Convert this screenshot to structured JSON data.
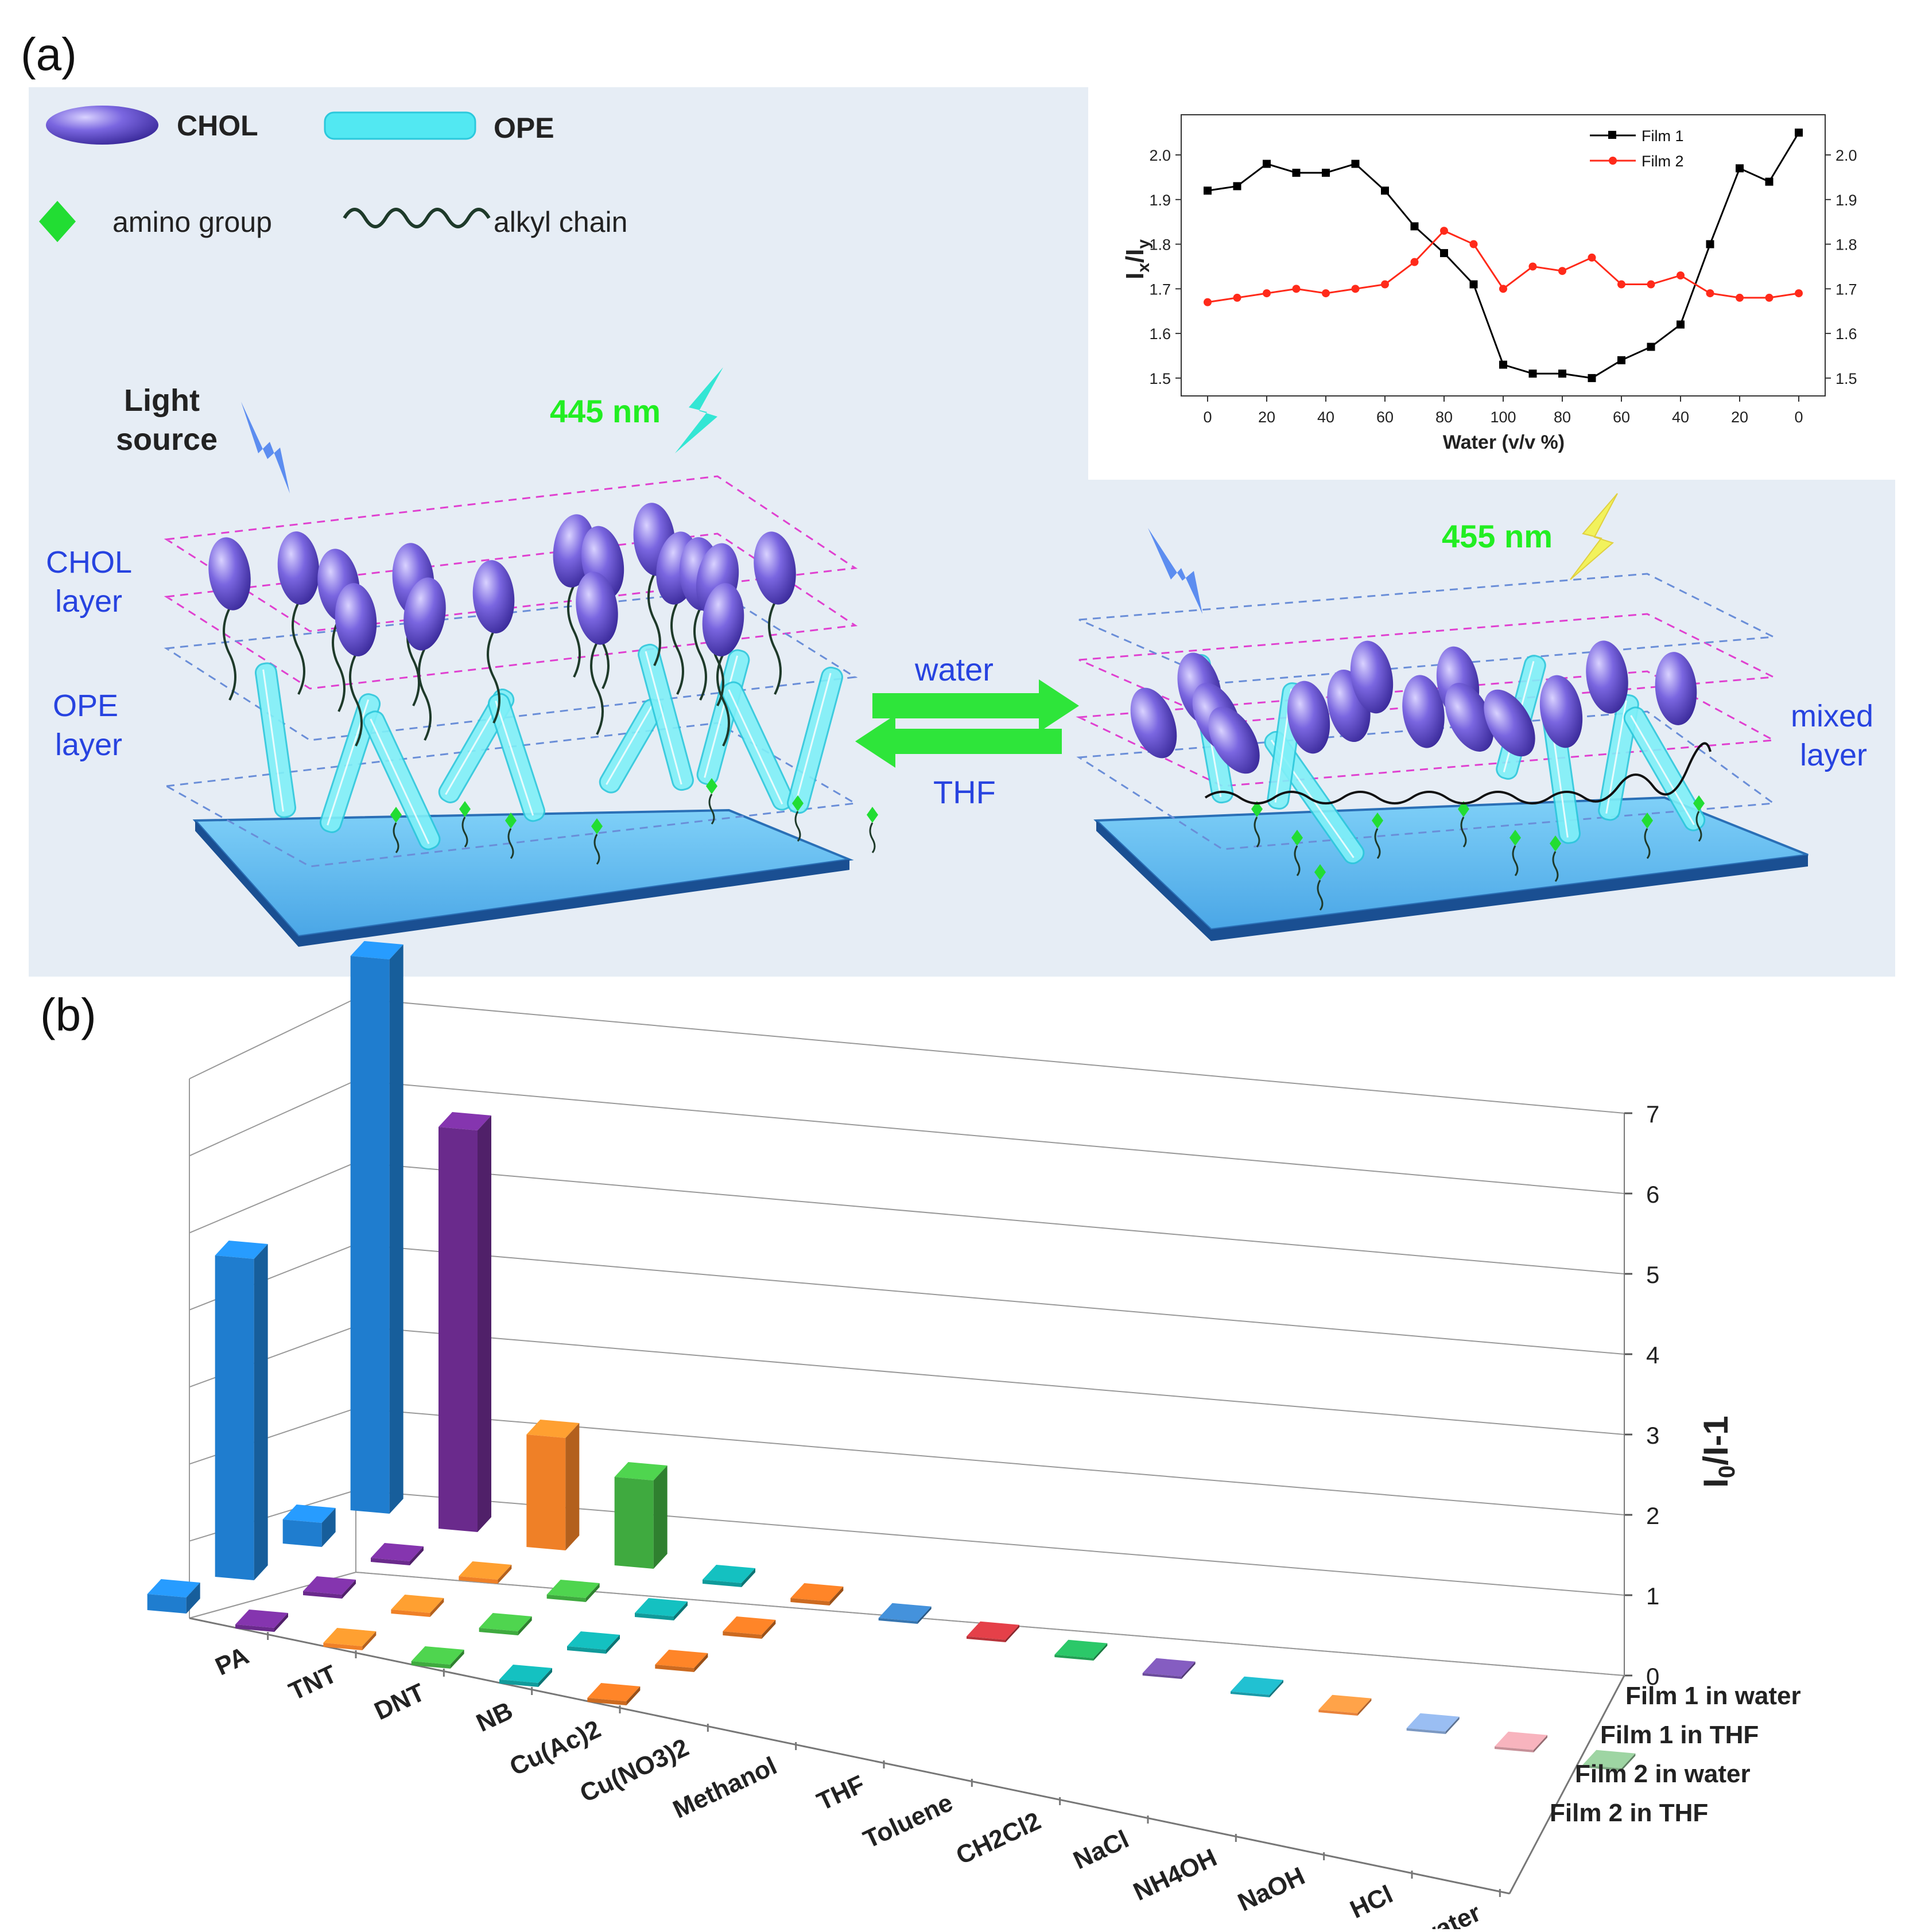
{
  "panel_a": {
    "label": "(a)",
    "legend": {
      "chol": "CHOL",
      "ope": "OPE",
      "amino": "amino group",
      "alkyl": "alkyl chain"
    },
    "light_source": [
      "Light",
      "source"
    ],
    "emission_left": "445 nm",
    "emission_right": "455 nm",
    "layers_left": {
      "chol": [
        "CHOL",
        "layer"
      ],
      "ope": [
        "OPE",
        "layer"
      ]
    },
    "layer_right": [
      "mixed",
      "layer"
    ],
    "arrow_forward": "water",
    "arrow_back": "THF",
    "colors": {
      "background": "#e6edf5",
      "ellipse": "#5a47c8",
      "ope": "#52e8f2",
      "amino": "#22dd33",
      "substrate": "#5cbef2",
      "arrow": "#2ee53a",
      "emit_left": "#33e6d4",
      "emit_right": "#f2f25c",
      "label_blue": "#2743e0"
    }
  },
  "panel_b": {
    "label": "(b)",
    "colors": [
      "#1f7dcf",
      "#6a2a8c",
      "#ef8027",
      "#3faa3f",
      "#109a9a",
      "#cc6a20",
      "#3675b0",
      "#b7333a",
      "#22a054",
      "#6a4a9a",
      "#1a9aa8",
      "#e8823a",
      "#7b98c2",
      "#c69098",
      "#7eaa82"
    ]
  },
  "chart_data": [
    {
      "type": "line",
      "title": "",
      "xlabel": "Water (v/v %)",
      "ylabel": "Ix/Iy",
      "x_tick_labels": [
        "0",
        "20",
        "40",
        "60",
        "80",
        "100",
        "80",
        "60",
        "40",
        "20",
        "0"
      ],
      "y_ticks": [
        "1.5",
        "1.6",
        "1.7",
        "1.8",
        "1.9",
        "2.0"
      ],
      "ylim": [
        1.46,
        2.09
      ],
      "legend_placement": "top-right",
      "series": [
        {
          "name": "Film 1",
          "color": "#000000",
          "marker": "square",
          "values": [
            1.92,
            1.93,
            1.98,
            1.96,
            1.96,
            1.98,
            1.92,
            1.84,
            1.78,
            1.71,
            1.53,
            1.51,
            1.51,
            1.5,
            1.54,
            1.57,
            1.62,
            1.8,
            1.97,
            1.94,
            2.05
          ]
        },
        {
          "name": "Film 2",
          "color": "#ff2a1a",
          "marker": "circle",
          "values": [
            1.67,
            1.68,
            1.69,
            1.7,
            1.69,
            1.7,
            1.71,
            1.76,
            1.83,
            1.8,
            1.7,
            1.75,
            1.74,
            1.77,
            1.71,
            1.71,
            1.73,
            1.69,
            1.68,
            1.68,
            1.69
          ]
        }
      ]
    },
    {
      "type": "bar",
      "title": "",
      "zlabel": "I0/I-1",
      "zlim": [
        0,
        7
      ],
      "z_ticks": [
        "0",
        "1",
        "2",
        "3",
        "4",
        "5",
        "6",
        "7"
      ],
      "categories": [
        "PA",
        "TNT",
        "DNT",
        "NB",
        "Cu(Ac)2",
        "Cu(NO3)2",
        "Methanol",
        "THF",
        "Toluene",
        "CH2Cl2",
        "NaCl",
        "NH4OH",
        "NaOH",
        "HCl",
        "Seawater"
      ],
      "series_names": [
        "Film 1 in water",
        "Film 1 in THF",
        "Film 2 in water",
        "Film 2 in THF"
      ],
      "series": [
        {
          "name": "Film 1 in water",
          "values": [
            6.9,
            5.0,
            1.4,
            1.1,
            0.05,
            0.05,
            0.03,
            0.03,
            0.03,
            0.03,
            0.03,
            0.03,
            0.03,
            0.03,
            0.03
          ]
        },
        {
          "name": "Film 1 in THF",
          "values": [
            0.3,
            0.05,
            0.05,
            0.05,
            0.05,
            0.05,
            null,
            null,
            null,
            null,
            null,
            null,
            null,
            null,
            null
          ]
        },
        {
          "name": "Film 2 in water",
          "values": [
            4.0,
            0.05,
            0.05,
            0.05,
            0.05,
            0.05,
            null,
            null,
            null,
            null,
            null,
            null,
            null,
            null,
            null
          ]
        },
        {
          "name": "Film 2 in THF",
          "values": [
            0.2,
            0.05,
            0.05,
            0.05,
            0.05,
            0.05,
            null,
            null,
            null,
            null,
            null,
            null,
            null,
            null,
            null
          ]
        }
      ]
    }
  ]
}
